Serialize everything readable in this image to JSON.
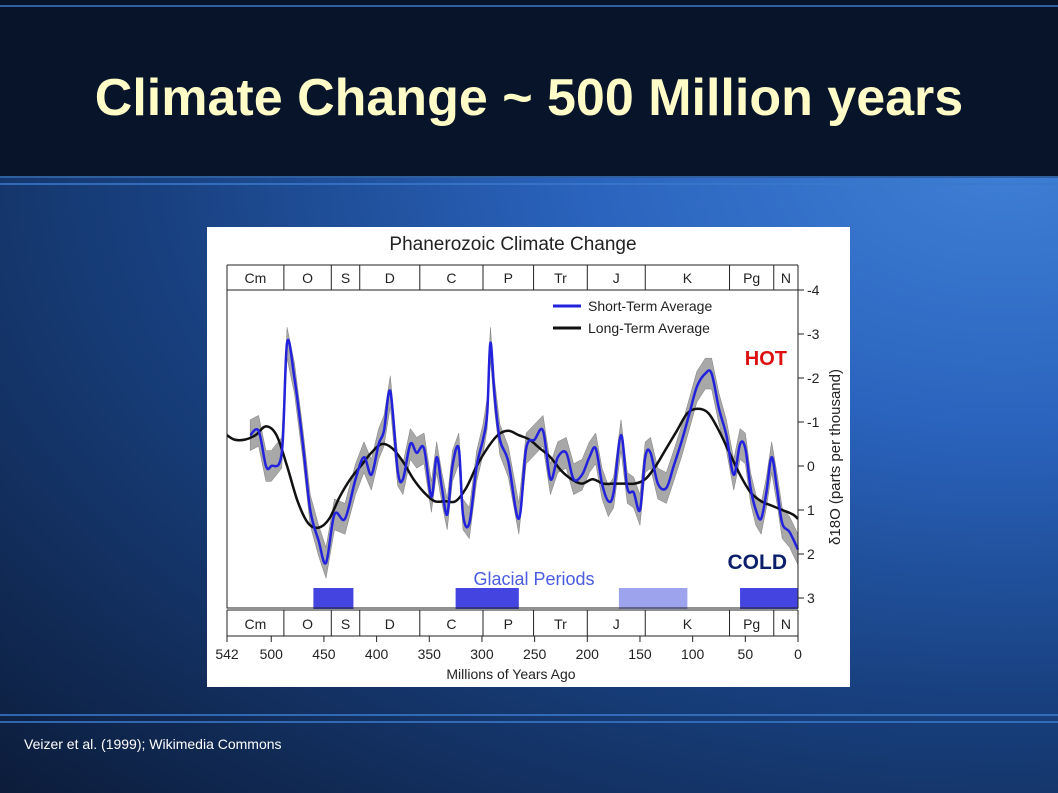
{
  "slide": {
    "title": "Climate Change ~ 500 Million years",
    "credit": "Veizer et al. (1999); Wikimedia Commons"
  },
  "chart_data": {
    "type": "line",
    "title": "Phanerozoic Climate Change",
    "xlabel": "Millions of Years Ago",
    "ylabel": "δ18O (parts per thousand)",
    "xlim": [
      542,
      0
    ],
    "ylim": [
      3,
      -4
    ],
    "x_ticks": [
      "542",
      "500",
      "450",
      "400",
      "350",
      "300",
      "250",
      "200",
      "150",
      "100",
      "50",
      "0"
    ],
    "y_ticks": [
      "-4",
      "-3",
      "-2",
      "-1",
      "0",
      "1",
      "2",
      "3"
    ],
    "periods": [
      {
        "label": "Cm",
        "start": 542,
        "end": 488
      },
      {
        "label": "O",
        "start": 488,
        "end": 443
      },
      {
        "label": "S",
        "start": 443,
        "end": 416
      },
      {
        "label": "D",
        "start": 416,
        "end": 359
      },
      {
        "label": "C",
        "start": 359,
        "end": 299
      },
      {
        "label": "P",
        "start": 299,
        "end": 251
      },
      {
        "label": "Tr",
        "start": 251,
        "end": 200
      },
      {
        "label": "J",
        "start": 200,
        "end": 145
      },
      {
        "label": "K",
        "start": 145,
        "end": 65
      },
      {
        "label": "Pg",
        "start": 65,
        "end": 23
      },
      {
        "label": "N",
        "start": 23,
        "end": 0
      }
    ],
    "series": [
      {
        "name": "Short-Term Average",
        "color": "#2222dd",
        "x": [
          520,
          512,
          505,
          500,
          490,
          485,
          478,
          470,
          463,
          455,
          448,
          440,
          430,
          420,
          412,
          405,
          398,
          393,
          387,
          380,
          375,
          368,
          362,
          355,
          348,
          343,
          338,
          333,
          328,
          322,
          318,
          312,
          305,
          299,
          295,
          292,
          288,
          283,
          275,
          265,
          258,
          250,
          242,
          235,
          228,
          220,
          213,
          205,
          198,
          192,
          186,
          180,
          175,
          168,
          162,
          156,
          150,
          145,
          140,
          133,
          125,
          118,
          110,
          103,
          96,
          88,
          82,
          75,
          68,
          61,
          55,
          50,
          45,
          40,
          35,
          30,
          25,
          20,
          15,
          8,
          0
        ],
        "y": [
          -0.7,
          -0.8,
          0,
          0,
          -0.3,
          -2.8,
          -2,
          -0.5,
          1,
          1.7,
          2.2,
          1.1,
          1.2,
          0.3,
          -0.2,
          0.2,
          -0.5,
          -0.8,
          -1.7,
          0.1,
          0.3,
          -0.5,
          -0.3,
          -0.4,
          0.7,
          -0.2,
          0.5,
          1.1,
          0,
          -0.4,
          1.1,
          1.3,
          0,
          -0.6,
          -1.2,
          -2.8,
          -1.6,
          -0.6,
          -0.1,
          1.2,
          -0.4,
          -0.6,
          -0.8,
          0.3,
          -0.2,
          -0.3,
          0.3,
          0.2,
          -0.2,
          -0.4,
          0.4,
          0.8,
          0.6,
          -0.7,
          0.5,
          0.6,
          1,
          -0.2,
          -0.3,
          0.4,
          0.5,
          0,
          -0.6,
          -1.2,
          -1.8,
          -2.1,
          -2.1,
          -1.3,
          -0.7,
          0.2,
          -0.5,
          -0.4,
          0.5,
          1,
          1.2,
          0.6,
          -0.2,
          0.5,
          1.3,
          1.5,
          1.9
        ]
      },
      {
        "name": "Long-Term Average",
        "color": "#111111",
        "x": [
          542,
          535,
          525,
          515,
          505,
          495,
          485,
          475,
          465,
          455,
          445,
          435,
          425,
          415,
          405,
          395,
          385,
          375,
          365,
          355,
          345,
          335,
          325,
          315,
          305,
          295,
          285,
          275,
          265,
          255,
          245,
          235,
          225,
          215,
          205,
          195,
          185,
          175,
          165,
          155,
          145,
          135,
          125,
          115,
          105,
          95,
          85,
          75,
          65,
          55,
          45,
          35,
          25,
          15,
          5,
          0
        ],
        "y": [
          -0.7,
          -0.6,
          -0.6,
          -0.7,
          -0.9,
          -0.7,
          0,
          0.8,
          1.3,
          1.4,
          1.2,
          0.7,
          0.3,
          0,
          -0.3,
          -0.5,
          -0.4,
          -0.1,
          0.3,
          0.6,
          0.8,
          0.8,
          0.8,
          0.5,
          0,
          -0.4,
          -0.7,
          -0.8,
          -0.7,
          -0.6,
          -0.4,
          -0.2,
          0.1,
          0.3,
          0.4,
          0.3,
          0.4,
          0.4,
          0.4,
          0.4,
          0.3,
          0,
          -0.4,
          -0.8,
          -1.2,
          -1.3,
          -1.2,
          -0.8,
          -0.3,
          0.2,
          0.6,
          0.8,
          0.9,
          1.0,
          1.1,
          1.2
        ]
      }
    ],
    "legend": {
      "position": "top-right",
      "items": [
        "Short-Term Average",
        "Long-Term Average"
      ]
    },
    "annotations": {
      "hot": "HOT",
      "cold": "COLD",
      "glacial": "Glacial Periods"
    },
    "glacial_periods": [
      {
        "start": 460,
        "end": 422,
        "shade": "dark"
      },
      {
        "start": 325,
        "end": 265,
        "shade": "dark"
      },
      {
        "start": 170,
        "end": 105,
        "shade": "light"
      },
      {
        "start": 55,
        "end": 0,
        "shade": "dark"
      }
    ]
  }
}
